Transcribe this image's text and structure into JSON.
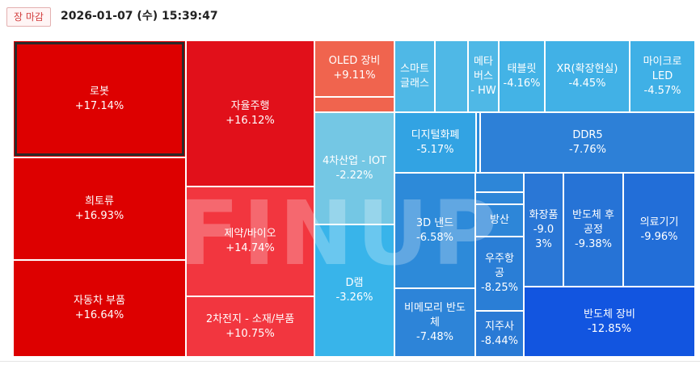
{
  "header": {
    "status_badge": "장 마감",
    "datetime": "2026-01-07 (수) 15:39:47"
  },
  "watermark": "FINUP",
  "colors": {
    "strong_red": "#dd0000",
    "red": "#f2363f",
    "light_red": "#f0644e",
    "light_blue": "#4fb8e6",
    "sky": "#38b4ea",
    "mid_blue": "#2d8ad9",
    "blue": "#2a7ed6",
    "deep_blue": "#1255e0"
  },
  "tiles": [
    {
      "id": "robot",
      "name": "로봇",
      "pct": "+17.14%",
      "selected": true
    },
    {
      "id": "rare-earth",
      "name": "희토류",
      "pct": "+16.93%"
    },
    {
      "id": "auto-parts",
      "name": "자동차 부품",
      "pct": "+16.64%"
    },
    {
      "id": "autonomous",
      "name": "자율주행",
      "pct": "+16.12%"
    },
    {
      "id": "pharma-bio",
      "name": "제약/바이오",
      "pct": "+14.74%"
    },
    {
      "id": "battery-materials",
      "name": "2차전지 - 소재/부품",
      "pct": "+10.75%"
    },
    {
      "id": "oled",
      "name": "OLED 장비",
      "pct": "+9.11%"
    },
    {
      "id": "iot",
      "name": "4차산업 - IOT",
      "pct": "-2.22%"
    },
    {
      "id": "dram",
      "name": "D램",
      "pct": "-3.26%"
    },
    {
      "id": "smart-glasses",
      "name": "스마트\n글래스",
      "pct": ""
    },
    {
      "id": "metaverse",
      "name": "메타\n버스\n- HW",
      "pct": ""
    },
    {
      "id": "tablet",
      "name": "태블릿",
      "pct": "-4.16%"
    },
    {
      "id": "xr",
      "name": "XR(확장현실)",
      "pct": "-4.45%"
    },
    {
      "id": "micro-led",
      "name": "마이크로\nLED",
      "pct": "-4.57%"
    },
    {
      "id": "digital-currency",
      "name": "디지털화폐",
      "pct": "-5.17%"
    },
    {
      "id": "ddr5",
      "name": "DDR5",
      "pct": "-7.76%"
    },
    {
      "id": "3d-nand",
      "name": "3D 낸드",
      "pct": "-6.58%"
    },
    {
      "id": "defense",
      "name": "방산",
      "pct": ""
    },
    {
      "id": "cosmetics",
      "name": "화장품\n-9.0\n3%",
      "pct": ""
    },
    {
      "id": "semi-back",
      "name": "반도체 후\n공정",
      "pct": "-9.38%"
    },
    {
      "id": "medical",
      "name": "의료기기",
      "pct": "-9.96%"
    },
    {
      "id": "aerospace",
      "name": "우주항\n공",
      "pct": "-8.25%"
    },
    {
      "id": "non-memory",
      "name": "비메모리 반도\n체",
      "pct": "-7.48%"
    },
    {
      "id": "holding",
      "name": "지주사",
      "pct": "-8.44%"
    },
    {
      "id": "semi-equip",
      "name": "반도체 장비",
      "pct": "-12.85%"
    },
    {
      "id": "blank-1",
      "name": "",
      "pct": ""
    },
    {
      "id": "blank-2",
      "name": "",
      "pct": ""
    },
    {
      "id": "blank-3",
      "name": "",
      "pct": ""
    },
    {
      "id": "blank-4",
      "name": "",
      "pct": ""
    },
    {
      "id": "blank-5",
      "name": "",
      "pct": ""
    }
  ]
}
